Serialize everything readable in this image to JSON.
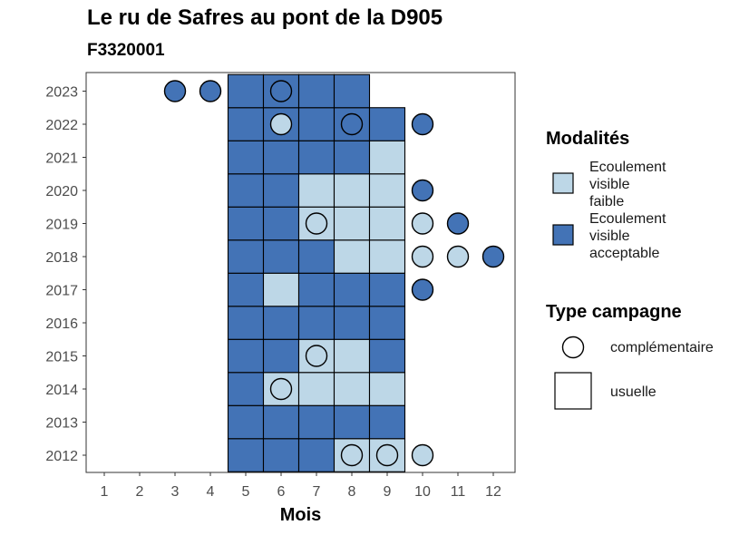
{
  "title": "Le ru de Safres au pont de la D905",
  "subtitle": "F3320001",
  "colors": {
    "faible": "#BDD7E7",
    "acceptable": "#4373B6",
    "border": "#000000"
  },
  "chart_data": {
    "type": "heatmap",
    "title": "Le ru de Safres au pont de la D905",
    "subtitle": "F3320001",
    "xlabel": "Mois",
    "ylabel": "",
    "x_ticks": [
      "1",
      "2",
      "3",
      "4",
      "5",
      "6",
      "7",
      "8",
      "9",
      "10",
      "11",
      "12"
    ],
    "y_ticks": [
      "2012",
      "2013",
      "2014",
      "2015",
      "2016",
      "2017",
      "2018",
      "2019",
      "2020",
      "2021",
      "2022",
      "2023"
    ],
    "cells": [
      {
        "year": 2012,
        "month": 5,
        "modalite": "acceptable",
        "campagne": "usuelle"
      },
      {
        "year": 2012,
        "month": 6,
        "modalite": "acceptable",
        "campagne": "usuelle"
      },
      {
        "year": 2012,
        "month": 7,
        "modalite": "acceptable",
        "campagne": "usuelle"
      },
      {
        "year": 2012,
        "month": 8,
        "modalite": "faible",
        "campagne": "usuelle"
      },
      {
        "year": 2012,
        "month": 9,
        "modalite": "faible",
        "campagne": "usuelle"
      },
      {
        "year": 2012,
        "month": 8,
        "modalite": "faible",
        "campagne": "complementaire"
      },
      {
        "year": 2012,
        "month": 9,
        "modalite": "faible",
        "campagne": "complementaire"
      },
      {
        "year": 2012,
        "month": 10,
        "modalite": "faible",
        "campagne": "complementaire"
      },
      {
        "year": 2013,
        "month": 5,
        "modalite": "acceptable",
        "campagne": "usuelle"
      },
      {
        "year": 2013,
        "month": 6,
        "modalite": "acceptable",
        "campagne": "usuelle"
      },
      {
        "year": 2013,
        "month": 7,
        "modalite": "acceptable",
        "campagne": "usuelle"
      },
      {
        "year": 2013,
        "month": 8,
        "modalite": "acceptable",
        "campagne": "usuelle"
      },
      {
        "year": 2013,
        "month": 9,
        "modalite": "acceptable",
        "campagne": "usuelle"
      },
      {
        "year": 2014,
        "month": 5,
        "modalite": "acceptable",
        "campagne": "usuelle"
      },
      {
        "year": 2014,
        "month": 6,
        "modalite": "faible",
        "campagne": "usuelle"
      },
      {
        "year": 2014,
        "month": 7,
        "modalite": "faible",
        "campagne": "usuelle"
      },
      {
        "year": 2014,
        "month": 8,
        "modalite": "faible",
        "campagne": "usuelle"
      },
      {
        "year": 2014,
        "month": 9,
        "modalite": "faible",
        "campagne": "usuelle"
      },
      {
        "year": 2014,
        "month": 6,
        "modalite": "faible",
        "campagne": "complementaire"
      },
      {
        "year": 2015,
        "month": 5,
        "modalite": "acceptable",
        "campagne": "usuelle"
      },
      {
        "year": 2015,
        "month": 6,
        "modalite": "acceptable",
        "campagne": "usuelle"
      },
      {
        "year": 2015,
        "month": 7,
        "modalite": "faible",
        "campagne": "usuelle"
      },
      {
        "year": 2015,
        "month": 8,
        "modalite": "faible",
        "campagne": "usuelle"
      },
      {
        "year": 2015,
        "month": 9,
        "modalite": "acceptable",
        "campagne": "usuelle"
      },
      {
        "year": 2015,
        "month": 7,
        "modalite": "faible",
        "campagne": "complementaire"
      },
      {
        "year": 2016,
        "month": 5,
        "modalite": "acceptable",
        "campagne": "usuelle"
      },
      {
        "year": 2016,
        "month": 6,
        "modalite": "acceptable",
        "campagne": "usuelle"
      },
      {
        "year": 2016,
        "month": 7,
        "modalite": "acceptable",
        "campagne": "usuelle"
      },
      {
        "year": 2016,
        "month": 8,
        "modalite": "acceptable",
        "campagne": "usuelle"
      },
      {
        "year": 2016,
        "month": 9,
        "modalite": "acceptable",
        "campagne": "usuelle"
      },
      {
        "year": 2017,
        "month": 5,
        "modalite": "acceptable",
        "campagne": "usuelle"
      },
      {
        "year": 2017,
        "month": 6,
        "modalite": "faible",
        "campagne": "usuelle"
      },
      {
        "year": 2017,
        "month": 7,
        "modalite": "acceptable",
        "campagne": "usuelle"
      },
      {
        "year": 2017,
        "month": 8,
        "modalite": "acceptable",
        "campagne": "usuelle"
      },
      {
        "year": 2017,
        "month": 9,
        "modalite": "acceptable",
        "campagne": "usuelle"
      },
      {
        "year": 2017,
        "month": 10,
        "modalite": "acceptable",
        "campagne": "complementaire"
      },
      {
        "year": 2018,
        "month": 5,
        "modalite": "acceptable",
        "campagne": "usuelle"
      },
      {
        "year": 2018,
        "month": 6,
        "modalite": "acceptable",
        "campagne": "usuelle"
      },
      {
        "year": 2018,
        "month": 7,
        "modalite": "acceptable",
        "campagne": "usuelle"
      },
      {
        "year": 2018,
        "month": 8,
        "modalite": "faible",
        "campagne": "usuelle"
      },
      {
        "year": 2018,
        "month": 9,
        "modalite": "faible",
        "campagne": "usuelle"
      },
      {
        "year": 2018,
        "month": 10,
        "modalite": "faible",
        "campagne": "complementaire"
      },
      {
        "year": 2018,
        "month": 11,
        "modalite": "faible",
        "campagne": "complementaire"
      },
      {
        "year": 2018,
        "month": 12,
        "modalite": "acceptable",
        "campagne": "complementaire"
      },
      {
        "year": 2019,
        "month": 5,
        "modalite": "acceptable",
        "campagne": "usuelle"
      },
      {
        "year": 2019,
        "month": 6,
        "modalite": "acceptable",
        "campagne": "usuelle"
      },
      {
        "year": 2019,
        "month": 7,
        "modalite": "faible",
        "campagne": "usuelle"
      },
      {
        "year": 2019,
        "month": 8,
        "modalite": "faible",
        "campagne": "usuelle"
      },
      {
        "year": 2019,
        "month": 9,
        "modalite": "faible",
        "campagne": "usuelle"
      },
      {
        "year": 2019,
        "month": 7,
        "modalite": "faible",
        "campagne": "complementaire"
      },
      {
        "year": 2019,
        "month": 10,
        "modalite": "faible",
        "campagne": "complementaire"
      },
      {
        "year": 2019,
        "month": 11,
        "modalite": "acceptable",
        "campagne": "complementaire"
      },
      {
        "year": 2020,
        "month": 5,
        "modalite": "acceptable",
        "campagne": "usuelle"
      },
      {
        "year": 2020,
        "month": 6,
        "modalite": "acceptable",
        "campagne": "usuelle"
      },
      {
        "year": 2020,
        "month": 7,
        "modalite": "faible",
        "campagne": "usuelle"
      },
      {
        "year": 2020,
        "month": 8,
        "modalite": "faible",
        "campagne": "usuelle"
      },
      {
        "year": 2020,
        "month": 9,
        "modalite": "faible",
        "campagne": "usuelle"
      },
      {
        "year": 2020,
        "month": 10,
        "modalite": "acceptable",
        "campagne": "complementaire"
      },
      {
        "year": 2021,
        "month": 5,
        "modalite": "acceptable",
        "campagne": "usuelle"
      },
      {
        "year": 2021,
        "month": 6,
        "modalite": "acceptable",
        "campagne": "usuelle"
      },
      {
        "year": 2021,
        "month": 7,
        "modalite": "acceptable",
        "campagne": "usuelle"
      },
      {
        "year": 2021,
        "month": 8,
        "modalite": "acceptable",
        "campagne": "usuelle"
      },
      {
        "year": 2021,
        "month": 9,
        "modalite": "faible",
        "campagne": "usuelle"
      },
      {
        "year": 2022,
        "month": 5,
        "modalite": "acceptable",
        "campagne": "usuelle"
      },
      {
        "year": 2022,
        "month": 6,
        "modalite": "acceptable",
        "campagne": "usuelle"
      },
      {
        "year": 2022,
        "month": 7,
        "modalite": "acceptable",
        "campagne": "usuelle"
      },
      {
        "year": 2022,
        "month": 8,
        "modalite": "acceptable",
        "campagne": "usuelle"
      },
      {
        "year": 2022,
        "month": 9,
        "modalite": "acceptable",
        "campagne": "usuelle"
      },
      {
        "year": 2022,
        "month": 6,
        "modalite": "faible",
        "campagne": "complementaire"
      },
      {
        "year": 2022,
        "month": 8,
        "modalite": "acceptable",
        "campagne": "complementaire"
      },
      {
        "year": 2022,
        "month": 10,
        "modalite": "acceptable",
        "campagne": "complementaire"
      },
      {
        "year": 2023,
        "month": 5,
        "modalite": "acceptable",
        "campagne": "usuelle"
      },
      {
        "year": 2023,
        "month": 6,
        "modalite": "acceptable",
        "campagne": "usuelle"
      },
      {
        "year": 2023,
        "month": 7,
        "modalite": "acceptable",
        "campagne": "usuelle"
      },
      {
        "year": 2023,
        "month": 8,
        "modalite": "acceptable",
        "campagne": "usuelle"
      },
      {
        "year": 2023,
        "month": 3,
        "modalite": "acceptable",
        "campagne": "complementaire"
      },
      {
        "year": 2023,
        "month": 4,
        "modalite": "acceptable",
        "campagne": "complementaire"
      },
      {
        "year": 2023,
        "month": 6,
        "modalite": "acceptable",
        "campagne": "complementaire"
      }
    ],
    "legend": {
      "modalites_title": "Modalités",
      "modalites": [
        {
          "key": "faible",
          "lines": [
            "Ecoulement",
            "visible",
            "faible"
          ]
        },
        {
          "key": "acceptable",
          "lines": [
            "Ecoulement",
            "visible",
            "acceptable"
          ]
        }
      ],
      "campagne_title": "Type campagne",
      "campagnes": [
        {
          "key": "complementaire",
          "label": "complémentaire",
          "shape": "circle"
        },
        {
          "key": "usuelle",
          "label": "usuelle",
          "shape": "square"
        }
      ],
      "position": "right"
    }
  }
}
